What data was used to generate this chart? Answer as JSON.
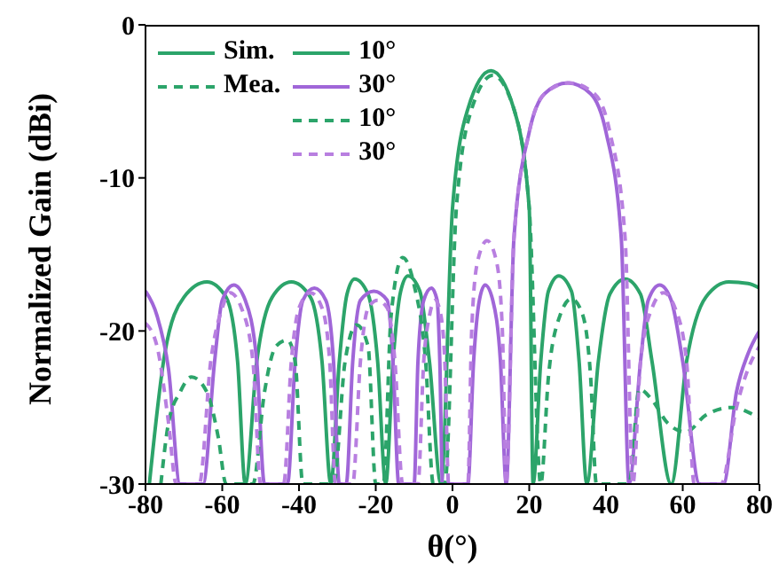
{
  "chart_data": {
    "type": "line",
    "xlabel": "θ(°)",
    "ylabel": "Normalized Gain (dBi)",
    "xlim": [
      -80,
      80
    ],
    "xticks": [
      -80,
      -60,
      -40,
      -20,
      0,
      20,
      40,
      60,
      80
    ],
    "ylim": [
      -30,
      0
    ],
    "yticks": [
      -30,
      -20,
      -10,
      0
    ],
    "legend": "top left",
    "marker": "none",
    "annotations": [
      "Sim.",
      "Mea."
    ],
    "series": [
      {
        "name": "10°",
        "color": "#2ca46a",
        "line_style": "solid",
        "x": [
          -79,
          -75,
          -70,
          -64,
          -59,
          -56,
          -54,
          -51,
          -47,
          -42,
          -37,
          -34,
          -31.7,
          -29.5,
          -27.5,
          -25.5,
          -22,
          -19.5,
          -17.4,
          -15.5,
          -13.5,
          -11.6,
          -8.5,
          -6,
          -3,
          0,
          4,
          10,
          16,
          20,
          21,
          23,
          25,
          27.7,
          31,
          33,
          35,
          38,
          41,
          45,
          49,
          52,
          57,
          61,
          66,
          72,
          77,
          80
        ],
        "values": [
          -30,
          -21.5,
          -17.8,
          -16.8,
          -17.8,
          -22,
          -30,
          -22,
          -17.8,
          -16.8,
          -17.8,
          -22,
          -30,
          -22,
          -17.6,
          -16.6,
          -17.6,
          -22,
          -30,
          -22,
          -17.4,
          -16.4,
          -17.4,
          -22,
          -30,
          -12,
          -5.5,
          -3,
          -5.5,
          -12,
          -30,
          -22,
          -17.4,
          -16.4,
          -17.4,
          -22,
          -30,
          -22,
          -17.6,
          -16.6,
          -17.6,
          -22,
          -30,
          -22,
          -17.8,
          -16.8,
          -16.9,
          -17.2
        ]
      },
      {
        "name": "30°",
        "color": "#a066d8",
        "line_style": "solid",
        "x": [
          -80,
          -77,
          -74,
          -71,
          -65,
          -62,
          -60,
          -57,
          -54,
          -51,
          -49,
          -43,
          -41,
          -39,
          -36,
          -33,
          -31,
          -29.5,
          -27.7,
          -26,
          -24,
          -20.5,
          -17,
          -15.5,
          -14,
          -10,
          -9,
          -7.5,
          -5.5,
          -4,
          -3.3,
          -2.6,
          4,
          5.5,
          7,
          8.5,
          10.5,
          12.5,
          14,
          16,
          20,
          24,
          30,
          36,
          40,
          44,
          46,
          49,
          51,
          54,
          57,
          60,
          64.4,
          70.6,
          74,
          77,
          80
        ],
        "values": [
          -17.4,
          -19,
          -22.5,
          -30,
          -30,
          -22,
          -18,
          -17,
          -18,
          -22,
          -30,
          -30,
          -22,
          -18,
          -17.2,
          -18,
          -22,
          -30,
          -30,
          -22,
          -18,
          -17.4,
          -18,
          -22,
          -30,
          -30,
          -22,
          -18,
          -17.2,
          -18,
          -22,
          -30,
          -30,
          -22,
          -18,
          -17,
          -18,
          -22,
          -30,
          -14,
          -7,
          -4.5,
          -3.8,
          -4.5,
          -7,
          -14,
          -30,
          -22,
          -18,
          -17,
          -18,
          -22,
          -30,
          -30,
          -24,
          -21.5,
          -20
        ]
      },
      {
        "name": "10°",
        "color": "#2ca46a",
        "line_style": "dashed",
        "x": [
          -76,
          -74,
          -71,
          -68,
          -64,
          -61,
          -59,
          -52,
          -49,
          -46,
          -43,
          -41,
          -39,
          -31,
          -28,
          -25,
          -22,
          -20,
          -18,
          -16,
          -13,
          -10,
          -7,
          -5,
          -2,
          1,
          5,
          10.5,
          16,
          20,
          23,
          25,
          28,
          31,
          34,
          36,
          37.5,
          46,
          48.7,
          52,
          56,
          60.8,
          66,
          72.8,
          77,
          80
        ],
        "values": [
          -30,
          -26,
          -24,
          -23,
          -24,
          -27,
          -30,
          -30,
          -24,
          -21,
          -20.6,
          -22,
          -30,
          -30,
          -22,
          -19.6,
          -21,
          -30,
          -30,
          -19,
          -15.2,
          -17,
          -22,
          -30,
          -30,
          -12,
          -5.5,
          -3.3,
          -5.5,
          -12,
          -30,
          -23,
          -19,
          -17.9,
          -19,
          -23,
          -30,
          -30,
          -23.8,
          -24.5,
          -26,
          -26.6,
          -25.5,
          -25,
          -25.3,
          -25.7
        ]
      },
      {
        "name": "30°",
        "color": "#b87fe0",
        "line_style": "dashed",
        "x": [
          -80,
          -77,
          -74,
          -72,
          -66,
          -63,
          -60,
          -58,
          -55,
          -52,
          -50,
          -44,
          -42,
          -40,
          -37,
          -34,
          -32,
          -30.5,
          -26,
          -24,
          -22,
          -19.5,
          -17,
          -15,
          -13,
          -9,
          -7.5,
          -6,
          -4.5,
          -3,
          -2,
          -1,
          4,
          5,
          6.5,
          9,
          11.5,
          13,
          14,
          16,
          20,
          24,
          30.5,
          37,
          41,
          45,
          47,
          49,
          52,
          55,
          58,
          61,
          63,
          70,
          74,
          77,
          80
        ],
        "values": [
          -19.5,
          -21,
          -26,
          -30,
          -30,
          -22,
          -18.5,
          -17.5,
          -18.5,
          -22,
          -30,
          -30,
          -22,
          -18.5,
          -17.5,
          -18.5,
          -22,
          -30,
          -30,
          -22,
          -18.5,
          -18,
          -18.5,
          -22,
          -30,
          -30,
          -22,
          -19,
          -18,
          -19,
          -22,
          -30,
          -30,
          -20,
          -15.5,
          -14.1,
          -15.5,
          -20,
          -30,
          -14,
          -7,
          -4.5,
          -3.8,
          -4.5,
          -7,
          -14,
          -30,
          -22,
          -18.5,
          -17.5,
          -18.5,
          -22,
          -30,
          -30,
          -25,
          -22.5,
          -21
        ]
      }
    ]
  }
}
